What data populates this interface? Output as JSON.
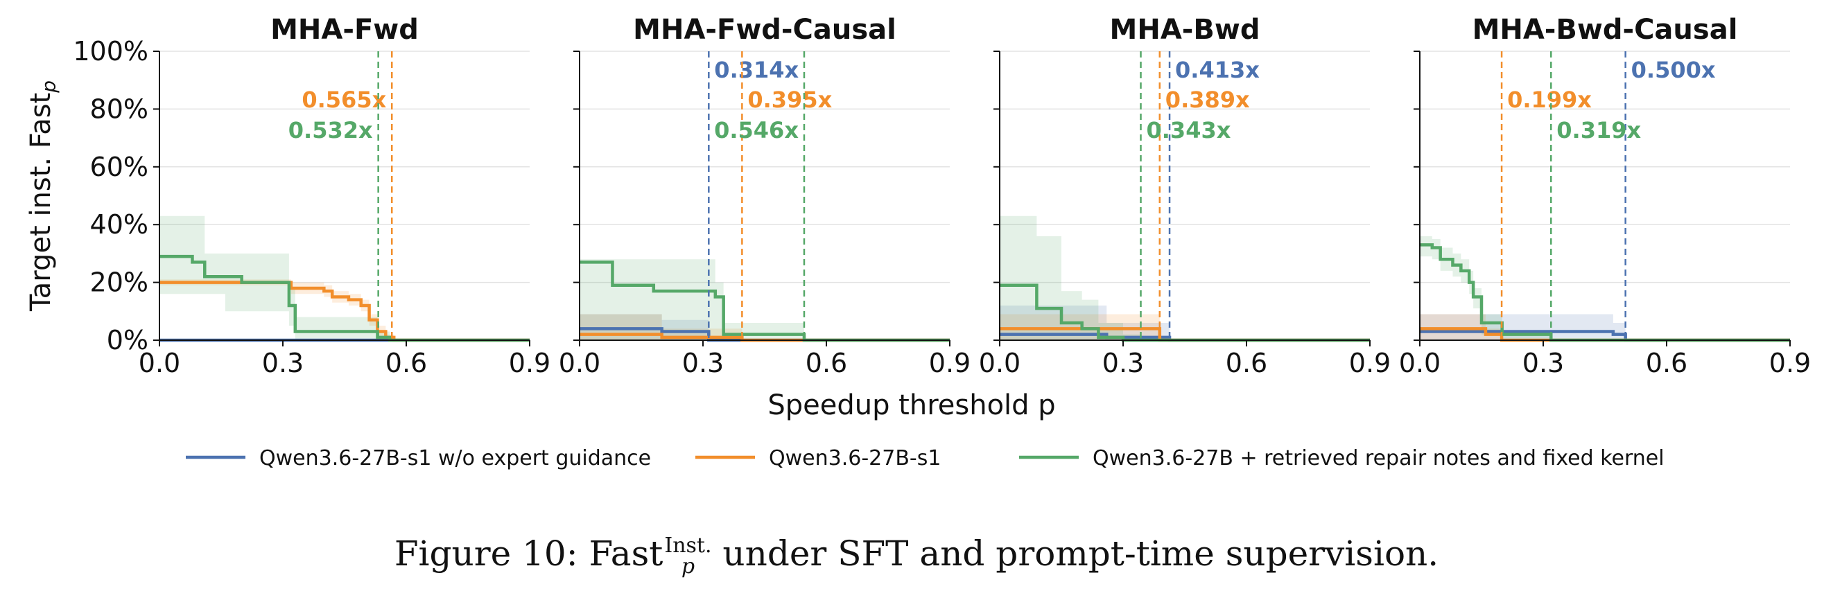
{
  "chart_data": [
    {
      "type": "line",
      "title": "MHA-Fwd",
      "ylabel": "Target inst. Fast",
      "ylabel_sub": "p",
      "xlim": [
        0.0,
        0.9
      ],
      "ylim": [
        0,
        100
      ],
      "yticks": [
        "0%",
        "20%",
        "40%",
        "60%",
        "80%",
        "100%"
      ],
      "xticks": [
        "0.0",
        "0.3",
        "0.6",
        "0.9"
      ],
      "series": [
        {
          "name": "Qwen3.6-27B-s1 w/o expert guidance",
          "color": "#4c72b0",
          "x": [
            0.0,
            0.9
          ],
          "y": [
            0,
            0
          ]
        },
        {
          "name": "Qwen3.6-27B-s1",
          "color": "#f28e2b",
          "x": [
            0.0,
            0.3,
            0.32,
            0.4,
            0.42,
            0.46,
            0.49,
            0.51,
            0.53,
            0.55,
            0.57,
            0.9
          ],
          "y": [
            20,
            20,
            18,
            17,
            15,
            14,
            12,
            7,
            3,
            1,
            0,
            0
          ],
          "band_low": [
            19,
            19,
            16,
            15,
            13,
            12,
            10,
            5,
            1,
            0,
            0,
            0
          ],
          "band_high": [
            21,
            21,
            20,
            19,
            17,
            16,
            14,
            9,
            5,
            2,
            0,
            0
          ]
        },
        {
          "name": "Qwen3.6-27B + retrieved repair notes and fixed kernel",
          "color": "#55a868",
          "x": [
            0.0,
            0.08,
            0.11,
            0.16,
            0.2,
            0.3,
            0.315,
            0.33,
            0.5,
            0.53,
            0.56,
            0.9
          ],
          "y": [
            29,
            27,
            22,
            22,
            20,
            20,
            12,
            3,
            3,
            1,
            0,
            0
          ],
          "band_low": [
            16,
            16,
            16,
            10,
            10,
            10,
            5,
            0,
            0,
            0,
            0,
            0
          ],
          "band_high": [
            43,
            43,
            30,
            30,
            30,
            30,
            18,
            8,
            8,
            3,
            0,
            0
          ]
        }
      ],
      "vlines": [
        {
          "x": 0.565,
          "label": "0.565x",
          "color": "#f28e2b",
          "row": 1,
          "side": "left"
        },
        {
          "x": 0.532,
          "label": "0.532x",
          "color": "#55a868",
          "row": 2,
          "side": "left"
        }
      ]
    },
    {
      "type": "line",
      "title": "MHA-Fwd-Causal",
      "xlim": [
        0.0,
        0.9
      ],
      "ylim": [
        0,
        100
      ],
      "xticks": [
        "0.0",
        "0.3",
        "0.6",
        "0.9"
      ],
      "series": [
        {
          "name": "Qwen3.6-27B-s1 w/o expert guidance",
          "color": "#4c72b0",
          "x": [
            0.0,
            0.18,
            0.2,
            0.3,
            0.314,
            0.9
          ],
          "y": [
            4,
            4,
            3,
            3,
            0,
            0
          ],
          "band_low": [
            0,
            0,
            0,
            0,
            0,
            0
          ],
          "band_high": [
            9,
            9,
            7,
            7,
            0,
            0
          ]
        },
        {
          "name": "Qwen3.6-27B-s1",
          "color": "#f28e2b",
          "x": [
            0.0,
            0.18,
            0.2,
            0.395,
            0.9
          ],
          "y": [
            2,
            2,
            1,
            0,
            0
          ],
          "band_low": [
            0,
            0,
            0,
            0,
            0
          ],
          "band_high": [
            9,
            9,
            4,
            0,
            0
          ]
        },
        {
          "name": "Qwen3.6-27B + retrieved repair notes and fixed kernel",
          "color": "#55a868",
          "x": [
            0.0,
            0.06,
            0.08,
            0.15,
            0.18,
            0.33,
            0.35,
            0.546,
            0.9
          ],
          "y": [
            27,
            27,
            19,
            19,
            17,
            15,
            2,
            0,
            0
          ],
          "band_low": [
            0,
            0,
            0,
            0,
            0,
            0,
            0,
            0,
            0
          ],
          "band_high": [
            28,
            28,
            28,
            28,
            28,
            20,
            6,
            0,
            0
          ]
        }
      ],
      "vlines": [
        {
          "x": 0.314,
          "label": "0.314x",
          "color": "#4c72b0",
          "row": 0,
          "side": "right"
        },
        {
          "x": 0.395,
          "label": "0.395x",
          "color": "#f28e2b",
          "row": 1,
          "side": "right"
        },
        {
          "x": 0.546,
          "label": "0.546x",
          "color": "#55a868",
          "row": 2,
          "side": "left"
        }
      ]
    },
    {
      "type": "line",
      "title": "MHA-Bwd",
      "xlim": [
        0.0,
        0.9
      ],
      "ylim": [
        0,
        100
      ],
      "xticks": [
        "0.0",
        "0.3",
        "0.6",
        "0.9"
      ],
      "series": [
        {
          "name": "Qwen3.6-27B-s1 w/o expert guidance",
          "color": "#4c72b0",
          "x": [
            0.0,
            0.24,
            0.26,
            0.3,
            0.413,
            0.9
          ],
          "y": [
            2,
            2,
            1,
            1,
            0,
            0
          ],
          "band_low": [
            0,
            0,
            0,
            0,
            0,
            0
          ],
          "band_high": [
            12,
            12,
            6,
            6,
            0,
            0
          ]
        },
        {
          "name": "Qwen3.6-27B-s1",
          "color": "#f28e2b",
          "x": [
            0.0,
            0.36,
            0.389,
            0.9
          ],
          "y": [
            4,
            4,
            0,
            0
          ],
          "band_low": [
            0,
            0,
            0,
            0
          ],
          "band_high": [
            9,
            9,
            0,
            0
          ]
        },
        {
          "name": "Qwen3.6-27B + retrieved repair notes and fixed kernel",
          "color": "#55a868",
          "x": [
            0.0,
            0.07,
            0.09,
            0.15,
            0.2,
            0.24,
            0.3,
            0.343,
            0.9
          ],
          "y": [
            19,
            19,
            11,
            6,
            4,
            1,
            0,
            0,
            0
          ],
          "band_low": [
            0,
            0,
            0,
            0,
            0,
            0,
            0,
            0,
            0
          ],
          "band_high": [
            43,
            43,
            36,
            17,
            14,
            6,
            2,
            0,
            0
          ]
        }
      ],
      "vlines": [
        {
          "x": 0.413,
          "label": "0.413x",
          "color": "#4c72b0",
          "row": 0,
          "side": "right"
        },
        {
          "x": 0.389,
          "label": "0.389x",
          "color": "#f28e2b",
          "row": 1,
          "side": "right"
        },
        {
          "x": 0.343,
          "label": "0.343x",
          "color": "#55a868",
          "row": 2,
          "side": "right"
        }
      ]
    },
    {
      "type": "line",
      "title": "MHA-Bwd-Causal",
      "xlim": [
        0.0,
        0.9
      ],
      "ylim": [
        0,
        100
      ],
      "xticks": [
        "0.0",
        "0.3",
        "0.6",
        "0.9"
      ],
      "series": [
        {
          "name": "Qwen3.6-27B-s1 w/o expert guidance",
          "color": "#4c72b0",
          "x": [
            0.0,
            0.45,
            0.47,
            0.5,
            0.9
          ],
          "y": [
            3,
            3,
            2,
            0,
            0
          ],
          "band_low": [
            0,
            0,
            0,
            0,
            0
          ],
          "band_high": [
            9,
            9,
            6,
            0,
            0
          ]
        },
        {
          "name": "Qwen3.6-27B-s1",
          "color": "#f28e2b",
          "x": [
            0.0,
            0.14,
            0.16,
            0.199,
            0.9
          ],
          "y": [
            4,
            4,
            2,
            0,
            0
          ],
          "band_low": [
            0,
            0,
            0,
            0,
            0
          ],
          "band_high": [
            9,
            9,
            4,
            0,
            0
          ]
        },
        {
          "name": "Qwen3.6-27B + retrieved repair notes and fixed kernel",
          "color": "#55a868",
          "x": [
            0.0,
            0.03,
            0.05,
            0.08,
            0.1,
            0.12,
            0.13,
            0.15,
            0.2,
            0.3,
            0.319,
            0.9
          ],
          "y": [
            33,
            32,
            28,
            26,
            24,
            20,
            15,
            6,
            2,
            2,
            0,
            0
          ],
          "band_low": [
            29,
            28,
            24,
            22,
            20,
            16,
            11,
            2,
            0,
            0,
            0,
            0
          ],
          "band_high": [
            36,
            35,
            32,
            30,
            28,
            24,
            18,
            9,
            3,
            3,
            0,
            0
          ]
        }
      ],
      "vlines": [
        {
          "x": 0.5,
          "label": "0.500x",
          "color": "#4c72b0",
          "row": 0,
          "side": "right"
        },
        {
          "x": 0.199,
          "label": "0.199x",
          "color": "#f28e2b",
          "row": 1,
          "side": "right"
        },
        {
          "x": 0.319,
          "label": "0.319x",
          "color": "#55a868",
          "row": 2,
          "side": "right"
        }
      ]
    }
  ],
  "shared": {
    "xlabel": "Speedup threshold p",
    "grid": "horizontal",
    "legend_position": "bottom-center",
    "legend": [
      {
        "name": "Qwen3.6-27B-s1 w/o expert guidance",
        "color": "#4c72b0"
      },
      {
        "name": "Qwen3.6-27B-s1",
        "color": "#f28e2b"
      },
      {
        "name": "Qwen3.6-27B + retrieved repair notes and fixed kernel",
        "color": "#55a868"
      }
    ]
  },
  "caption": {
    "prefix": "Figure 10: Fast",
    "sup": "Inst.",
    "sub": "p",
    "suffix": " under SFT and prompt-time supervision."
  }
}
